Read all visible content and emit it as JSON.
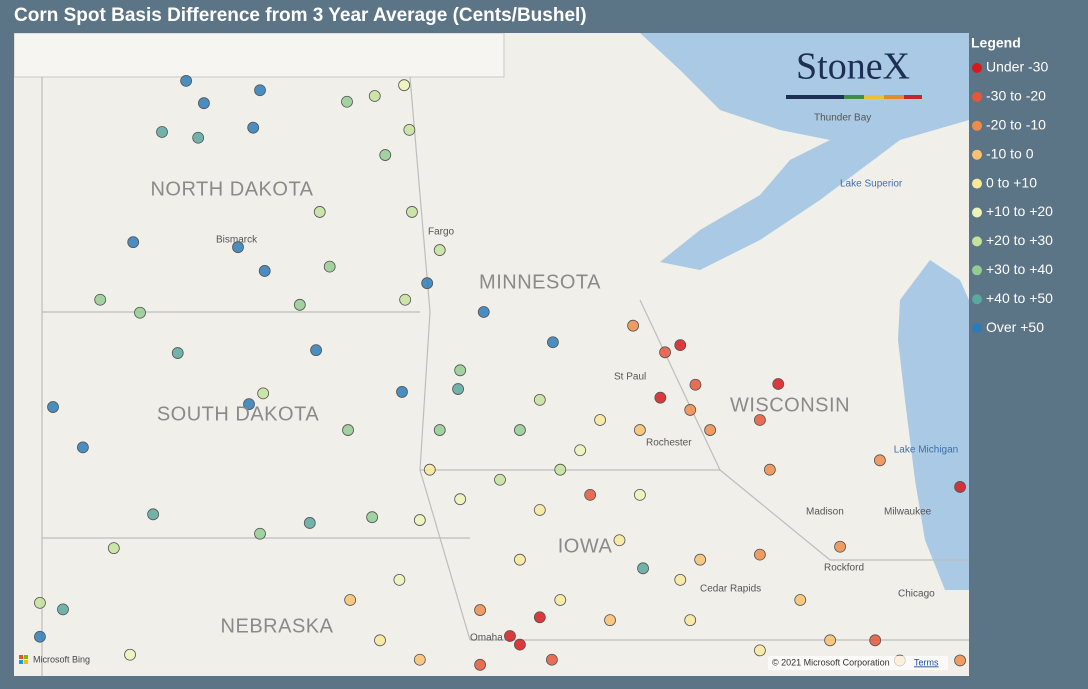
{
  "title": "Corn Spot Basis Difference from 3 Year Average (Cents/Bushel)",
  "logo": "StoneX",
  "legend": {
    "title": "Legend",
    "items": [
      {
        "label": "Under -30",
        "color": "#d7191c"
      },
      {
        "label": "-30 to -20",
        "color": "#e8553a"
      },
      {
        "label": "-20 to -10",
        "color": "#f08c4a"
      },
      {
        "label": "-10 to 0",
        "color": "#f9c170"
      },
      {
        "label": "0 to +10",
        "color": "#f7e99a"
      },
      {
        "label": "+10 to +20",
        "color": "#eef3b8"
      },
      {
        "label": "+20 to +30",
        "color": "#c4e29b"
      },
      {
        "label": "+30 to +40",
        "color": "#93cc93"
      },
      {
        "label": "+40 to +50",
        "color": "#5aa8a0"
      },
      {
        "label": "Over +50",
        "color": "#2b7bba"
      }
    ]
  },
  "map_labels": {
    "north_dakota": "NORTH DAKOTA",
    "south_dakota": "SOUTH DAKOTA",
    "minnesota": "MINNESOTA",
    "wisconsin": "WISCONSIN",
    "iowa": "IOWA",
    "nebraska": "NEBRASKA",
    "bismarck": "Bismarck",
    "fargo": "Fargo",
    "thunder_bay": "Thunder Bay",
    "lake_superior": "Lake Superior",
    "lake_michigan": "Lake Michigan",
    "milwaukee": "Milwaukee",
    "madison": "Madison",
    "chicago": "Chicago",
    "rochester": "Rochester",
    "cedar_rapids": "Cedar Rapids",
    "rockford": "Rockford",
    "omaha": "Omaha",
    "st_paul": "St Paul"
  },
  "attribution": {
    "bing": "Microsoft Bing",
    "copyright": "© 2021 Microsoft Corporation",
    "terms": "Terms"
  },
  "points": [
    [
      -101.77,
      49.02,
      "Over +50"
    ],
    [
      -100.36,
      48.89,
      "Over +50"
    ],
    [
      -101.43,
      48.71,
      "Over +50"
    ],
    [
      -100.49,
      48.37,
      "Over +50"
    ],
    [
      -102.78,
      46.78,
      "Over +50"
    ],
    [
      -100.78,
      46.71,
      "Over +50"
    ],
    [
      -100.27,
      46.38,
      "Over +50"
    ],
    [
      -100.57,
      44.53,
      "Over +50"
    ],
    [
      -104.31,
      44.49,
      "Over +50"
    ],
    [
      -103.74,
      43.93,
      "Over +50"
    ],
    [
      -99.29,
      45.28,
      "Over +50"
    ],
    [
      -97.65,
      44.7,
      "Over +50"
    ],
    [
      -96.09,
      45.81,
      "Over +50"
    ],
    [
      -94.77,
      45.39,
      "Over +50"
    ],
    [
      -97.17,
      46.21,
      "Over +50"
    ],
    [
      -104.56,
      41.3,
      "Over +50"
    ],
    [
      -102.23,
      48.31,
      "+40 to +50"
    ],
    [
      -101.93,
      45.24,
      "+40 to +50"
    ],
    [
      -102.4,
      43.0,
      "+40 to +50"
    ],
    [
      -99.41,
      42.88,
      "+40 to +50"
    ],
    [
      -101.54,
      48.23,
      "+40 to +50"
    ],
    [
      -104.12,
      41.68,
      "+40 to +50"
    ],
    [
      -93.05,
      42.25,
      "+40 to +50"
    ],
    [
      -96.58,
      44.74,
      "+40 to +50"
    ],
    [
      -103.41,
      45.98,
      "+30 to +40"
    ],
    [
      -102.65,
      45.8,
      "+30 to +40"
    ],
    [
      -100.36,
      42.73,
      "+30 to +40"
    ],
    [
      -99.6,
      45.91,
      "+30 to +40"
    ],
    [
      -99.03,
      46.44,
      "+30 to +40"
    ],
    [
      -97.97,
      47.99,
      "+30 to +40"
    ],
    [
      -98.7,
      48.73,
      "+30 to +40"
    ],
    [
      -96.93,
      44.17,
      "+30 to +40"
    ],
    [
      -95.4,
      44.17,
      "+30 to +40"
    ],
    [
      -98.22,
      42.96,
      "+30 to +40"
    ],
    [
      -96.54,
      45.0,
      "+30 to +40"
    ],
    [
      -98.68,
      44.17,
      "+30 to +40"
    ],
    [
      -98.17,
      48.81,
      "+20 to +30"
    ],
    [
      -97.51,
      48.34,
      "+20 to +30"
    ],
    [
      -99.22,
      47.2,
      "+20 to +30"
    ],
    [
      -97.59,
      45.98,
      "+20 to +30"
    ],
    [
      -103.15,
      42.53,
      "+20 to +30"
    ],
    [
      -104.56,
      41.77,
      "+20 to +30"
    ],
    [
      -95.78,
      43.48,
      "+20 to +30"
    ],
    [
      -94.63,
      43.62,
      "+20 to +30"
    ],
    [
      -96.93,
      46.67,
      "+20 to +30"
    ],
    [
      -97.46,
      47.2,
      "+20 to +30"
    ],
    [
      -100.3,
      44.68,
      "+20 to +30"
    ],
    [
      -95.02,
      44.59,
      "+20 to +30"
    ],
    [
      -97.61,
      48.96,
      "+10 to +20"
    ],
    [
      -97.31,
      42.92,
      "+10 to +20"
    ],
    [
      -94.25,
      43.89,
      "+10 to +20"
    ],
    [
      -96.54,
      43.21,
      "+10 to +20"
    ],
    [
      -93.11,
      43.27,
      "+10 to +20"
    ],
    [
      -102.84,
      41.05,
      "+10 to +20"
    ],
    [
      -97.7,
      42.09,
      "+10 to +20"
    ],
    [
      -97.12,
      43.62,
      "0 to +10"
    ],
    [
      -95.02,
      43.06,
      "0 to +10"
    ],
    [
      -93.5,
      42.64,
      "0 to +10"
    ],
    [
      -92.15,
      41.53,
      "0 to +10"
    ],
    [
      -93.87,
      44.31,
      "0 to +10"
    ],
    [
      -92.34,
      42.09,
      "0 to +10"
    ],
    [
      -95.4,
      42.37,
      "0 to +10"
    ],
    [
      -98.07,
      41.25,
      "0 to +10"
    ],
    [
      -94.63,
      41.81,
      "0 to +10"
    ],
    [
      -90.82,
      41.11,
      "0 to +10"
    ],
    [
      -98.64,
      41.81,
      "-10 to 0"
    ],
    [
      -93.11,
      44.17,
      "-10 to 0"
    ],
    [
      -91.96,
      42.37,
      "-10 to 0"
    ],
    [
      -90.05,
      41.81,
      "-10 to 0"
    ],
    [
      -89.48,
      41.25,
      "-10 to 0"
    ],
    [
      -88.15,
      40.97,
      "-10 to 0"
    ],
    [
      -97.31,
      40.98,
      "-10 to 0"
    ],
    [
      -93.68,
      41.53,
      "-10 to 0"
    ],
    [
      -93.24,
      45.62,
      "-20 to -10"
    ],
    [
      -91.77,
      44.17,
      "-20 to -10"
    ],
    [
      -90.63,
      43.62,
      "-20 to -10"
    ],
    [
      -88.53,
      43.75,
      "-20 to -10"
    ],
    [
      -90.82,
      42.44,
      "-20 to -10"
    ],
    [
      -96.16,
      41.67,
      "-20 to -10"
    ],
    [
      -89.29,
      42.55,
      "-20 to -10"
    ],
    [
      -87.0,
      40.97,
      "-20 to -10"
    ],
    [
      -92.15,
      44.45,
      "-20 to -10"
    ],
    [
      -92.63,
      45.25,
      "-30 to -20"
    ],
    [
      -92.05,
      44.8,
      "-30 to -20"
    ],
    [
      -90.82,
      44.31,
      "-30 to -20"
    ],
    [
      -94.06,
      43.27,
      "-30 to -20"
    ],
    [
      -96.16,
      40.91,
      "-30 to -20"
    ],
    [
      -88.62,
      41.25,
      "-30 to -20"
    ],
    [
      -94.79,
      40.98,
      "-30 to -20"
    ],
    [
      -92.34,
      45.35,
      "Under -30"
    ],
    [
      -92.72,
      44.62,
      "Under -30"
    ],
    [
      -90.47,
      44.81,
      "Under -30"
    ],
    [
      -87.0,
      43.38,
      "Under -30"
    ],
    [
      -95.02,
      41.57,
      "Under -30"
    ],
    [
      -95.4,
      41.19,
      "Under -30"
    ],
    [
      -95.59,
      41.31,
      "Under -30"
    ]
  ]
}
